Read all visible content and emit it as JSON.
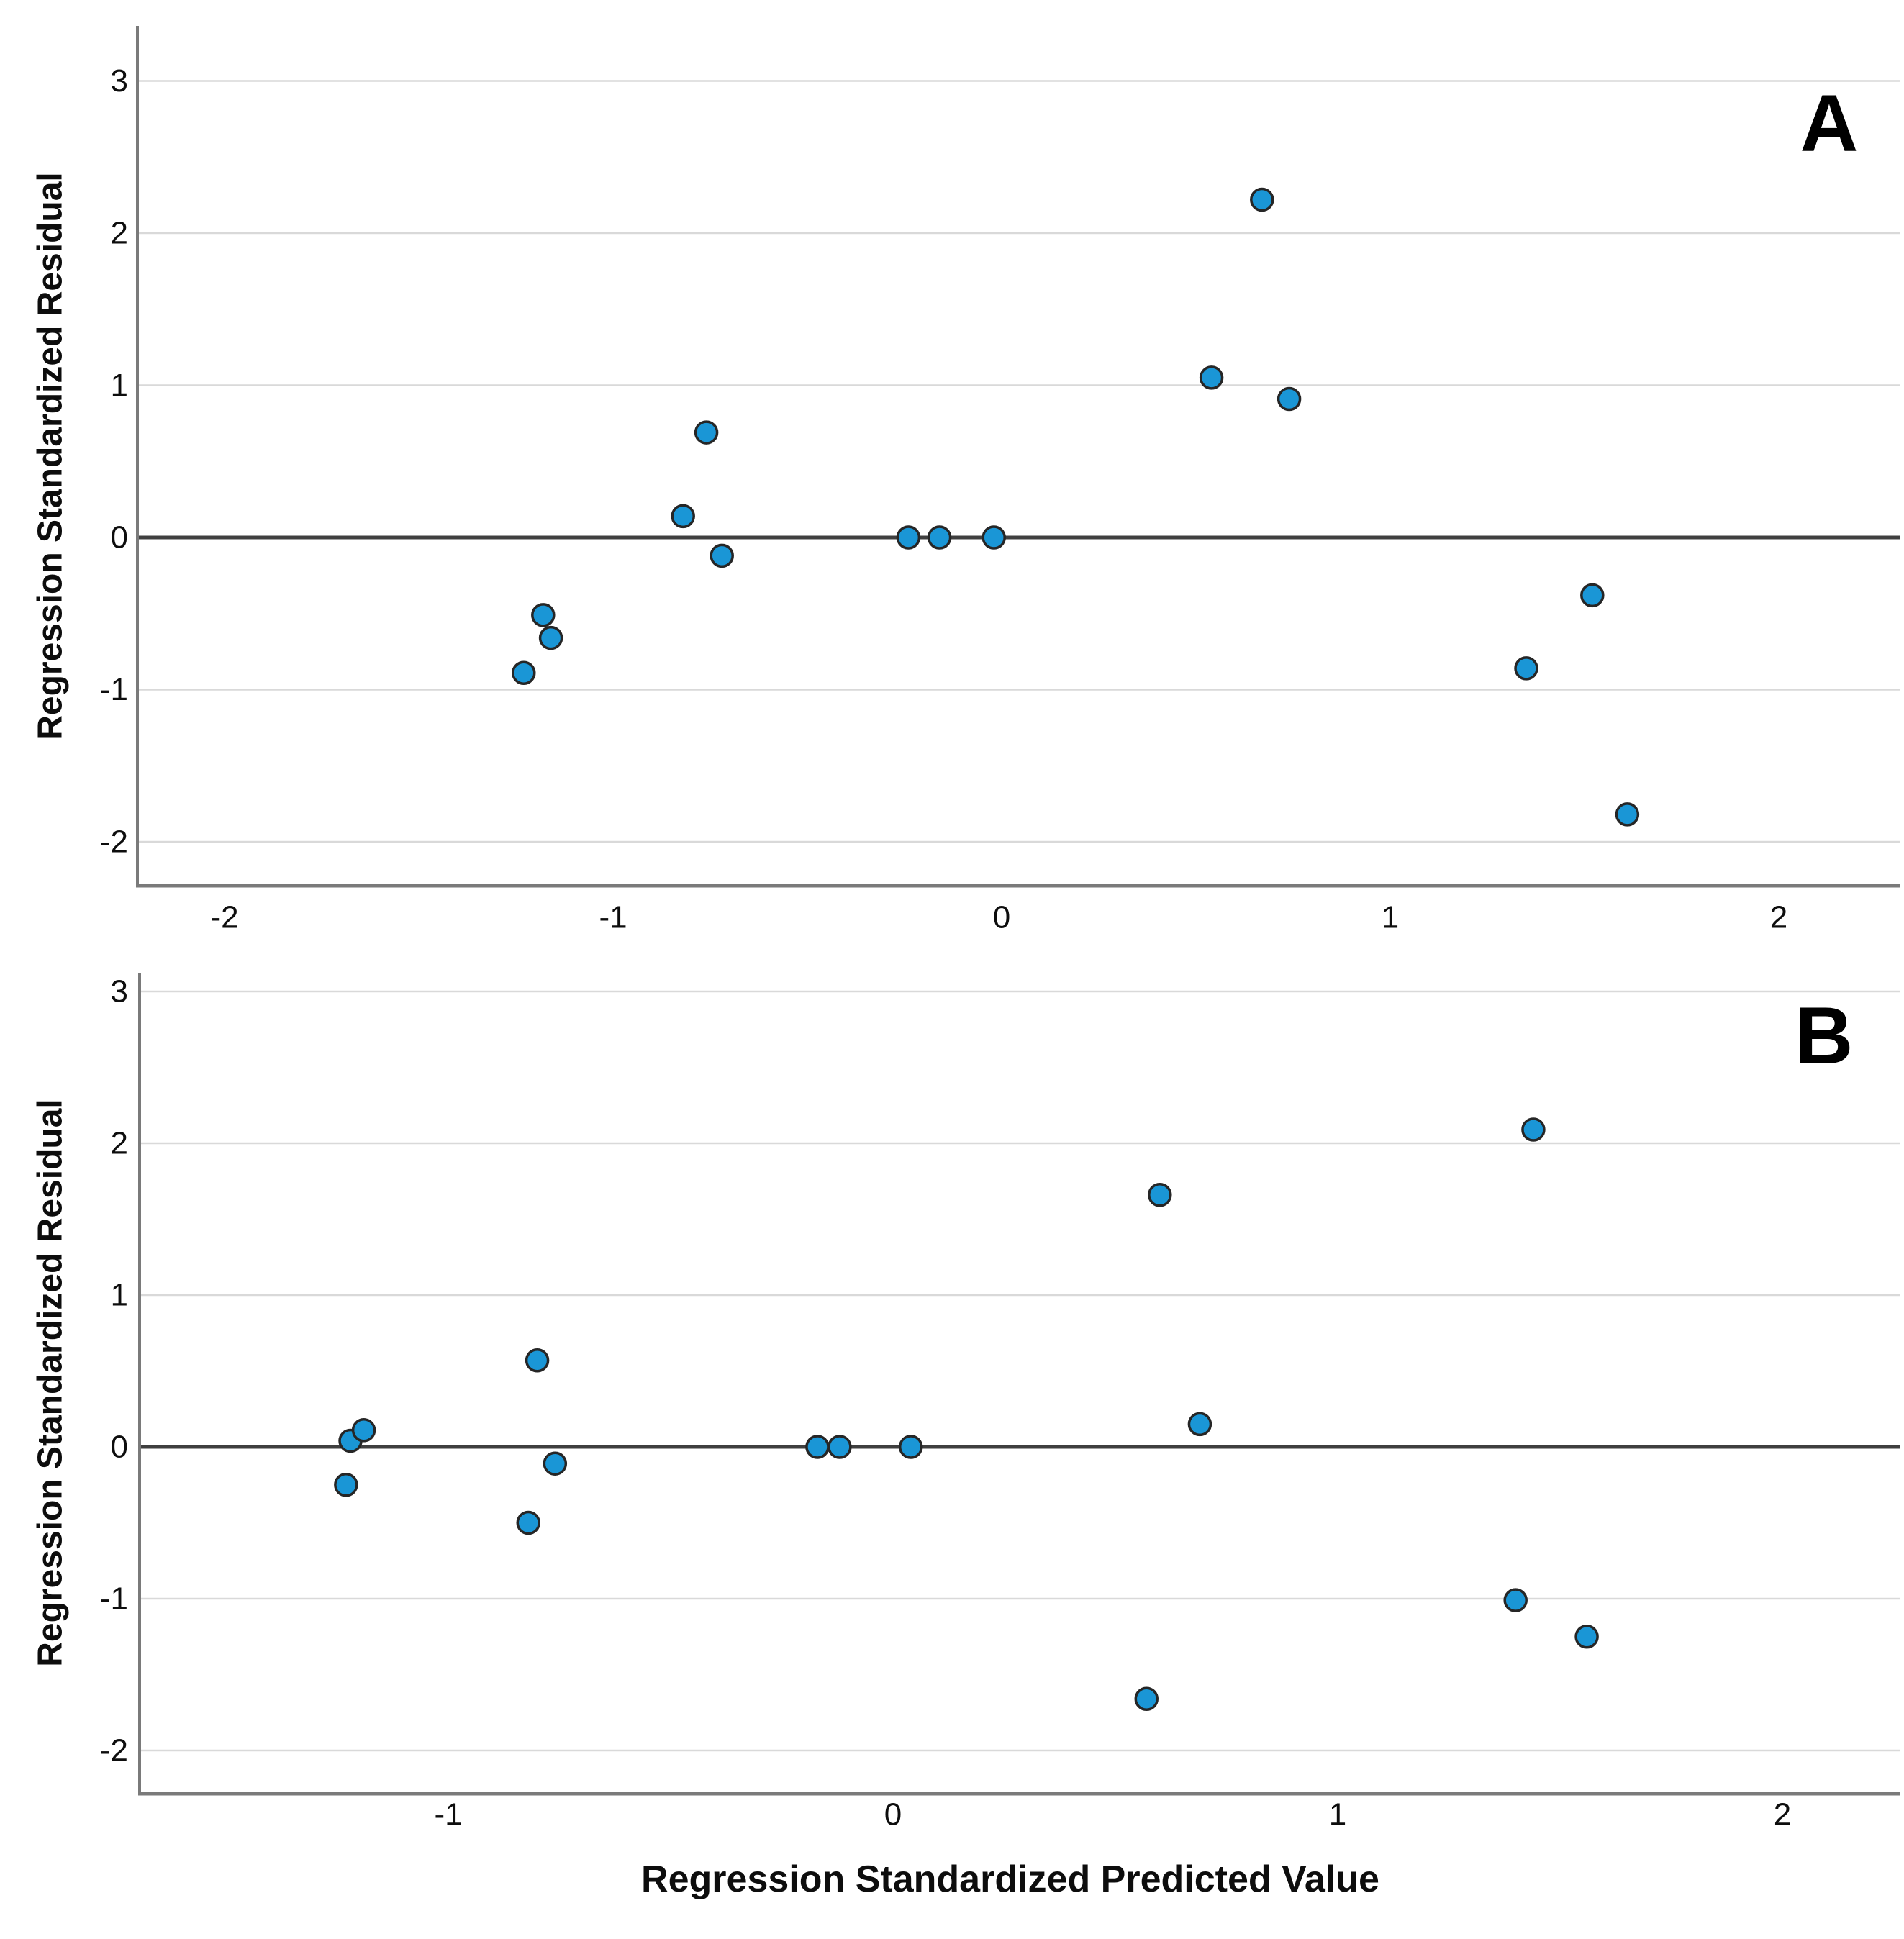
{
  "figure": {
    "x_axis_title": "Regression Standardized Predicted Value",
    "background": "#FFFFFF"
  },
  "style": {
    "point_fill": "#1A96D6",
    "point_stroke": "#262626",
    "grid_color": "#D9D9D9",
    "zero_line_color": "#3F3F3F",
    "axis_line_color": "#7A7A7A",
    "text_color": "#0D0D0D"
  },
  "chart_data": [
    {
      "type": "scatter",
      "panel_label": "A",
      "title": "",
      "xlabel": "",
      "ylabel": "Regression Standardized Residual",
      "legend": "none",
      "grid": "horizontal",
      "x_ticks": [
        -2,
        -1,
        0,
        1,
        2
      ],
      "y_ticks": [
        3,
        2,
        1,
        0,
        -1,
        -2
      ],
      "xlim": [
        -2.22,
        2.32
      ],
      "ylim": [
        -2.29,
        3.36
      ],
      "zero_reference_line": 0,
      "points": [
        [
          -1.23,
          -0.89
        ],
        [
          -1.18,
          -0.51
        ],
        [
          -1.16,
          -0.66
        ],
        [
          -0.82,
          0.14
        ],
        [
          -0.76,
          0.69
        ],
        [
          -0.72,
          -0.12
        ],
        [
          -0.24,
          0.0
        ],
        [
          -0.16,
          0.0
        ],
        [
          -0.02,
          0.0
        ],
        [
          0.54,
          1.05
        ],
        [
          0.67,
          2.22
        ],
        [
          0.74,
          0.91
        ],
        [
          1.35,
          -0.86
        ],
        [
          1.52,
          -0.38
        ],
        [
          1.61,
          -1.82
        ]
      ]
    },
    {
      "type": "scatter",
      "panel_label": "B",
      "title": "",
      "xlabel": "Regression Standardized Predicted Value",
      "ylabel": "Regression Standardized Residual",
      "legend": "none",
      "grid": "horizontal",
      "x_ticks": [
        -1,
        0,
        1,
        2
      ],
      "y_ticks": [
        3,
        2,
        1,
        0,
        -1,
        -2
      ],
      "xlim": [
        -1.69,
        2.27
      ],
      "ylim": [
        -2.28,
        3.12
      ],
      "zero_reference_line": 0,
      "points": [
        [
          -1.23,
          -0.25
        ],
        [
          -1.22,
          0.04
        ],
        [
          -1.19,
          0.11
        ],
        [
          -0.82,
          -0.5
        ],
        [
          -0.8,
          0.57
        ],
        [
          -0.76,
          -0.11
        ],
        [
          -0.17,
          0.0
        ],
        [
          -0.12,
          0.0
        ],
        [
          0.04,
          0.0
        ],
        [
          0.57,
          -1.66
        ],
        [
          0.6,
          1.66
        ],
        [
          0.69,
          0.15
        ],
        [
          1.4,
          -1.01
        ],
        [
          1.44,
          2.09
        ],
        [
          1.56,
          -1.25
        ]
      ]
    }
  ]
}
